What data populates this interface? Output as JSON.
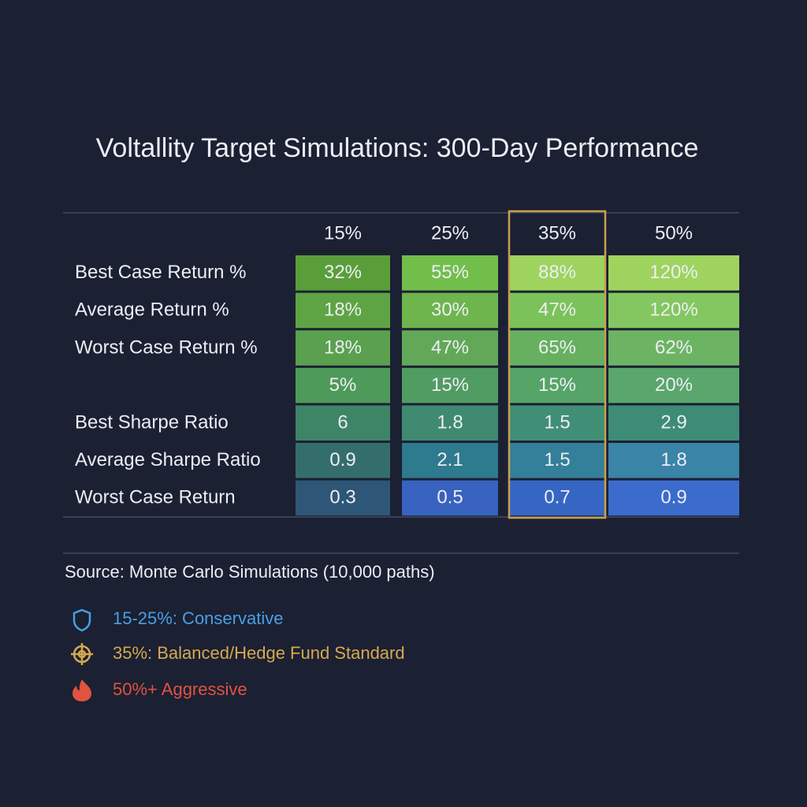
{
  "title": "Voltallity Target Simulations: 300-Day Performance",
  "table": {
    "columns": [
      "15%",
      "25%",
      "35%",
      "50%"
    ],
    "rows": [
      {
        "label": "Best Case Return %",
        "cells": [
          "32%",
          "55%",
          "88%",
          "120%"
        ]
      },
      {
        "label": "Average Return %",
        "cells": [
          "18%",
          "30%",
          "47%",
          "120%"
        ]
      },
      {
        "label": "Worst Case Return %",
        "cells": [
          "18%",
          "47%",
          "65%",
          "62%"
        ]
      },
      {
        "label": null,
        "cells": [
          "5%",
          "15%",
          "15%",
          "20%"
        ]
      },
      {
        "label": "Best Sharpe Ratio",
        "cells": [
          "6",
          "1.8",
          "1.5",
          "2.9"
        ]
      },
      {
        "label": "Average Sharpe Ratio",
        "cells": [
          "0.9",
          "2.1",
          "1.5",
          "1.8"
        ]
      },
      {
        "label": "Worst Case Return",
        "cells": [
          "0.3",
          "0.5",
          "0.7",
          "0.9"
        ]
      }
    ]
  },
  "source": "Source: Monte Carlo Simulations (10,000 paths)",
  "legend": [
    "15-25%: Conservative",
    "35%: Balanced/Hedge Fund Standard",
    "50%+ Aggressive"
  ]
}
